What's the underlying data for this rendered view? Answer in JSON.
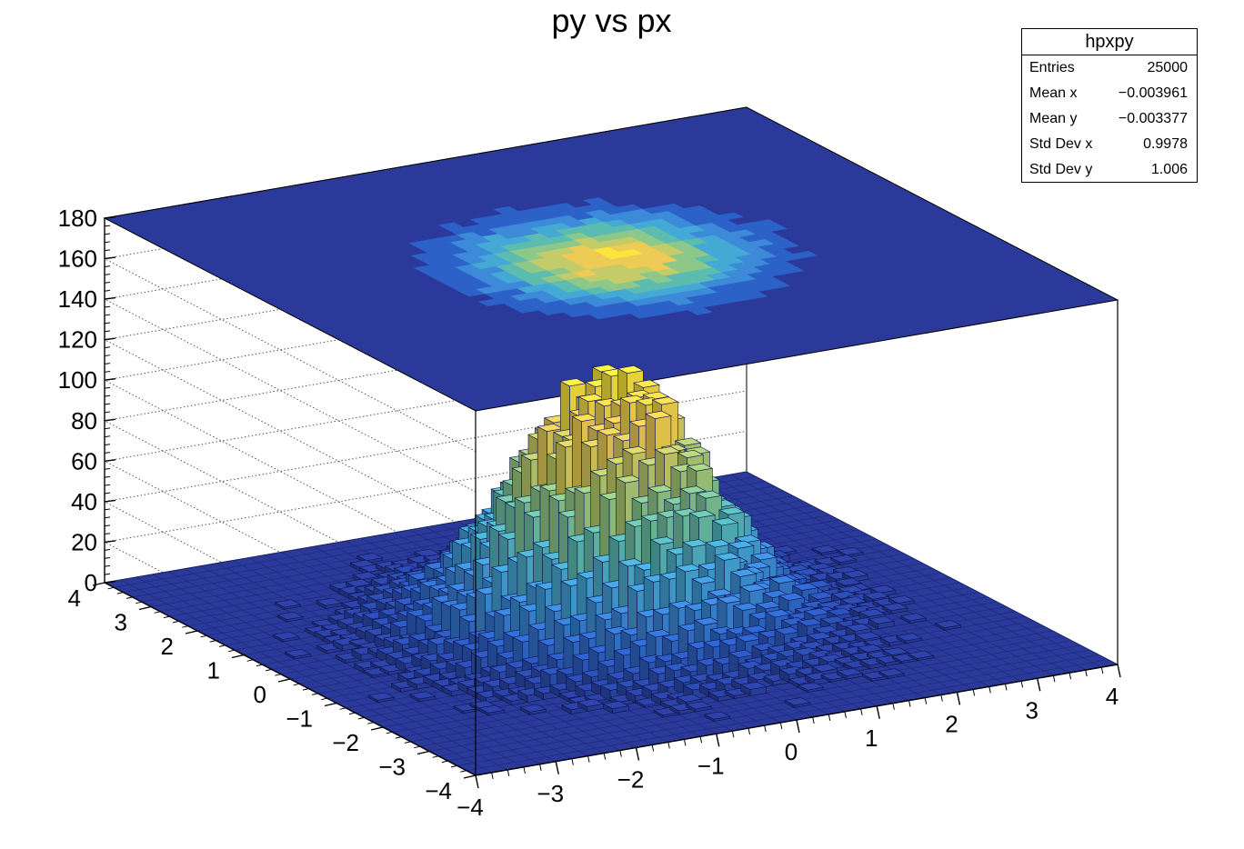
{
  "chart_data": {
    "type": "lego3d",
    "title": "py vs px",
    "x_range": [
      -4,
      4
    ],
    "y_range": [
      -4,
      4
    ],
    "z_range": [
      0,
      180
    ],
    "x_ticks": [
      -4,
      -3,
      -2,
      -1,
      0,
      1,
      2,
      3,
      4
    ],
    "y_ticks": [
      -4,
      -3,
      -2,
      -1,
      0,
      1,
      2,
      3,
      4
    ],
    "z_ticks": [
      0,
      20,
      40,
      60,
      80,
      100,
      120,
      140,
      160,
      180
    ],
    "x_tick_labels": [
      "−4",
      "−3",
      "−2",
      "−1",
      "0",
      "1",
      "2",
      "3",
      "4"
    ],
    "y_tick_labels": [
      "−4",
      "−3",
      "−2",
      "−1",
      "0",
      "1",
      "2",
      "3",
      "4"
    ],
    "z_tick_labels": [
      "0",
      "20",
      "40",
      "60",
      "80",
      "100",
      "120",
      "140",
      "160",
      "180"
    ],
    "bins_x": 40,
    "bins_y": 40,
    "distribution": "2D gaussian",
    "mean_x": -0.003961,
    "mean_y": -0.003377,
    "std_x": 0.9978,
    "std_y": 1.006,
    "peak_bin_content": 120,
    "top_projection": "contour of bin contents",
    "palette": [
      "#2b3a9a",
      "#2c62c8",
      "#3c8ad8",
      "#45a9d6",
      "#5cbcb0",
      "#8dc88a",
      "#c4cc6a",
      "#eecb55",
      "#fbe43c"
    ],
    "grid": true,
    "stats": {
      "name": "hpxpy",
      "rows": [
        {
          "label": "Entries",
          "value": "25000"
        },
        {
          "label": "Mean x",
          "value": "−0.003961"
        },
        {
          "label": "Mean y",
          "value": "−0.003377"
        },
        {
          "label": "Std Dev x",
          "value": "0.9978"
        },
        {
          "label": "Std Dev y",
          "value": "1.006"
        }
      ]
    }
  }
}
